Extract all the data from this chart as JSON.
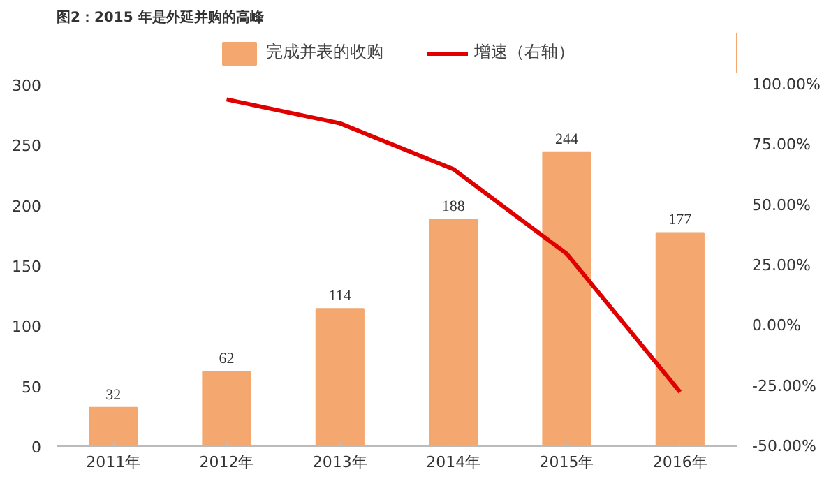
{
  "chart_data": {
    "type": "bar",
    "title": "图2：2015 年是外延并购的高峰",
    "categories": [
      "2011年",
      "2012年",
      "2013年",
      "2014年",
      "2015年",
      "2016年"
    ],
    "series": [
      {
        "name": "完成并表的收购",
        "color": "#f4a76e",
        "values": [
          32,
          62,
          114,
          188,
          244,
          177
        ],
        "value_labels": [
          "32",
          "62",
          "114",
          "188",
          "244",
          "177"
        ]
      },
      {
        "name": "增速（右轴）",
        "type": "line",
        "axis": "y2",
        "color": "#e00000",
        "values": [
          null,
          93.8,
          83.9,
          64.9,
          29.8,
          -27.5
        ]
      }
    ],
    "ylim": [
      0,
      300
    ],
    "yticks": [
      0,
      50,
      100,
      150,
      200,
      250,
      300
    ],
    "y2lim": [
      -50,
      100
    ],
    "y2ticks": [
      {
        "value": -50,
        "label": "-50.00%"
      },
      {
        "value": -25,
        "label": "-25.00%"
      },
      {
        "value": 0,
        "label": "0.00%"
      },
      {
        "value": 25,
        "label": "25.00%"
      },
      {
        "value": 50,
        "label": "50.00%"
      },
      {
        "value": 75,
        "label": "75.00%"
      },
      {
        "value": 100,
        "label": "100.00%"
      }
    ],
    "grid": false,
    "legend": "top",
    "line_style": "solid",
    "marker": "none"
  }
}
